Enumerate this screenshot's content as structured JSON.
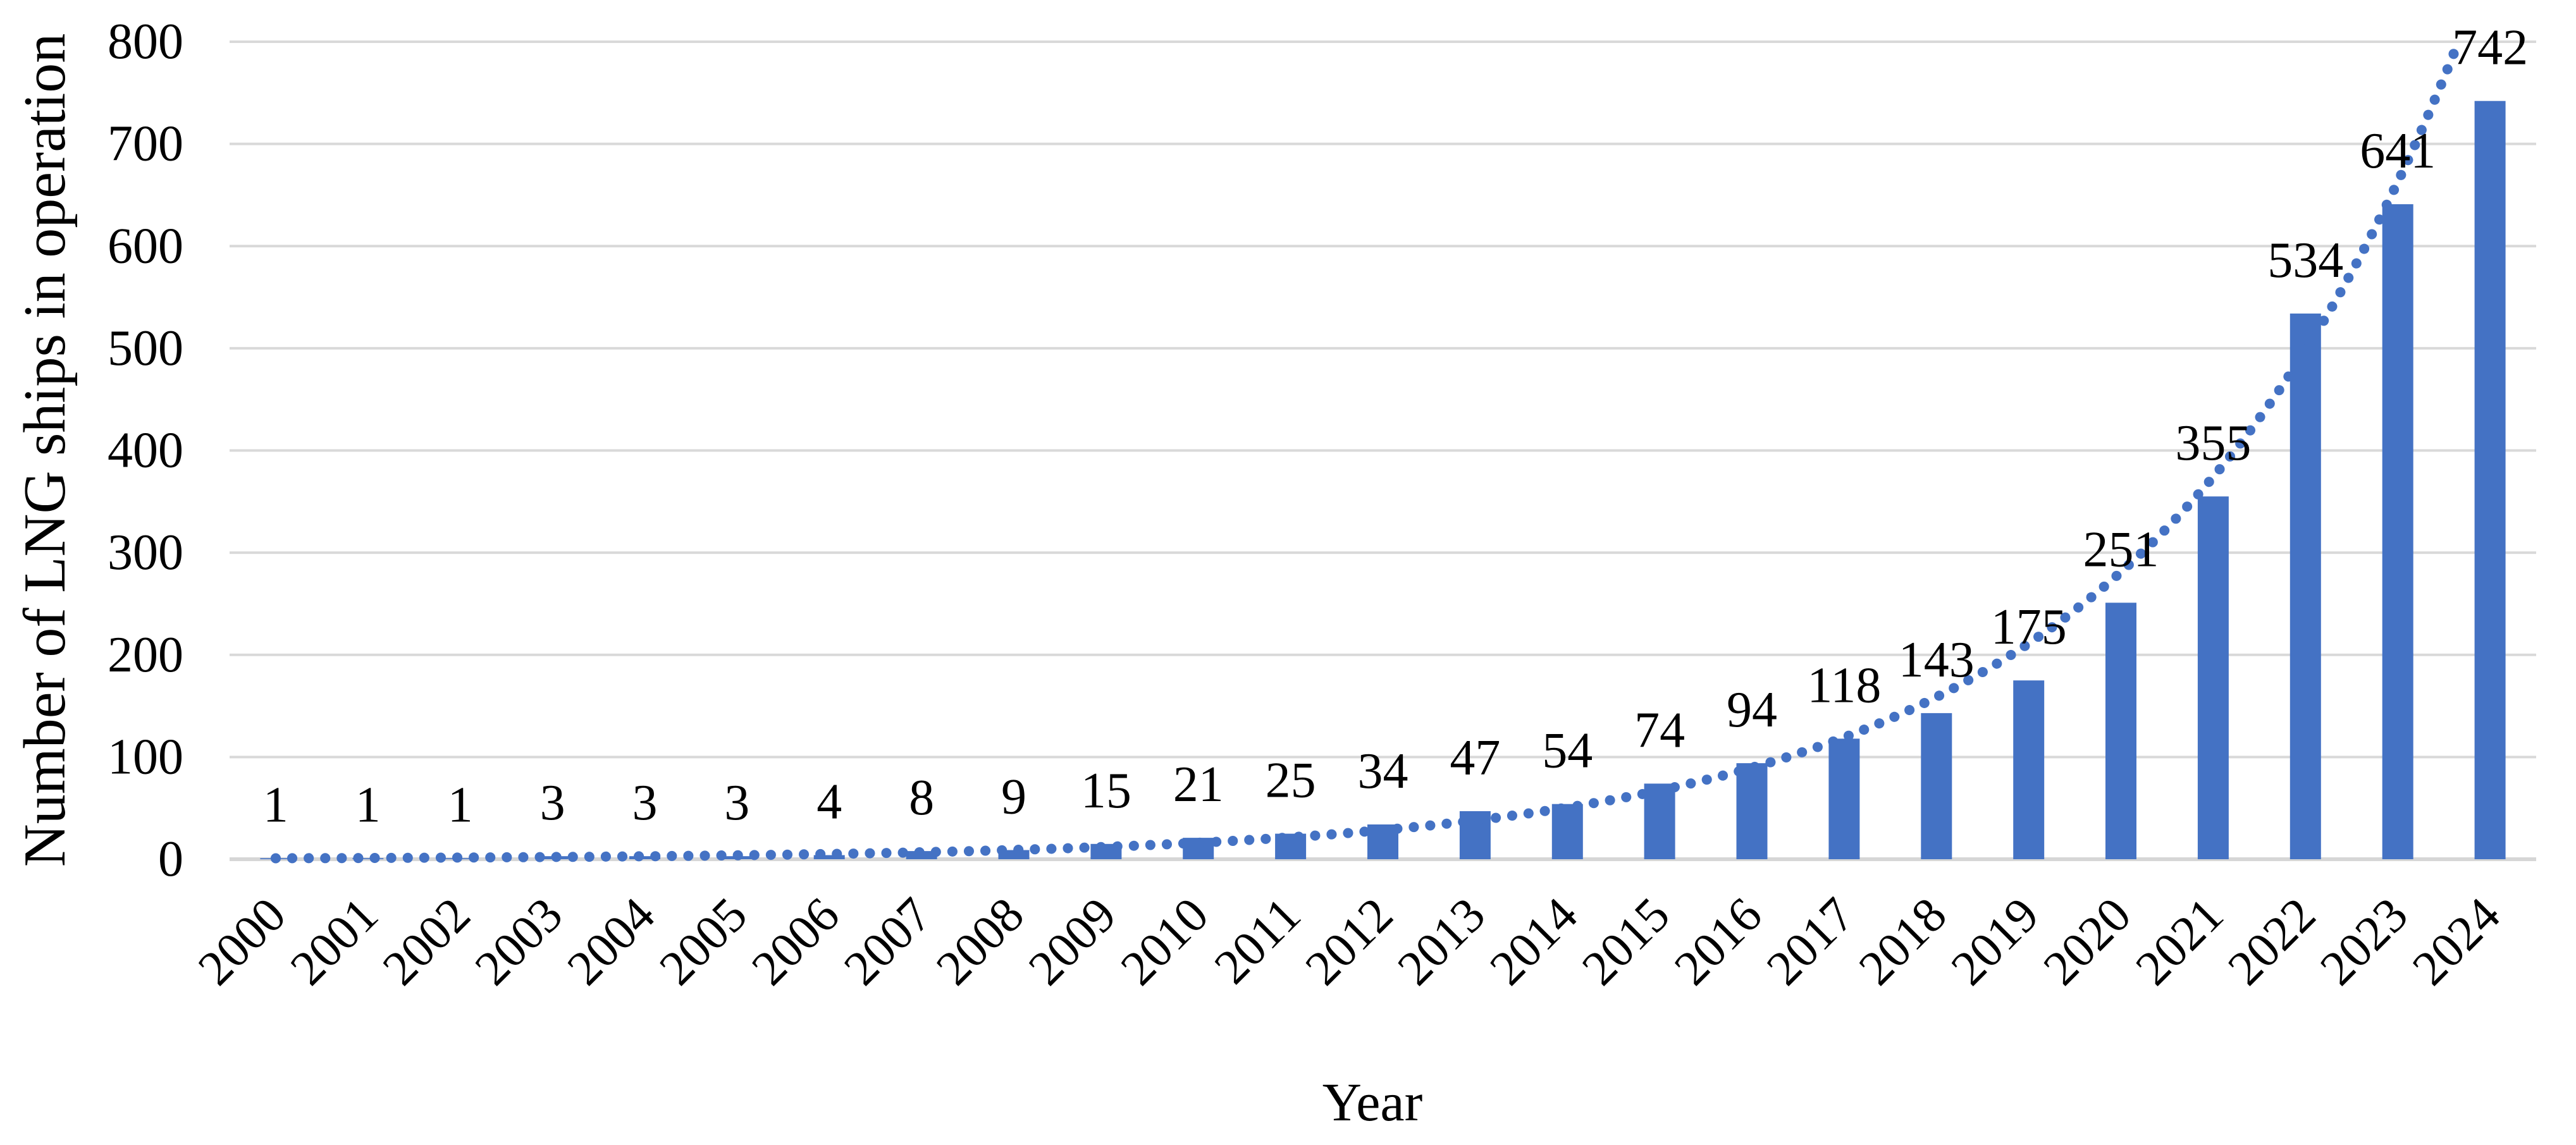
{
  "chart_data": {
    "type": "bar",
    "title": "",
    "xlabel": "Year",
    "ylabel": "Number of LNG ships in operation",
    "categories": [
      "2000",
      "2001",
      "2002",
      "2003",
      "2004",
      "2005",
      "2006",
      "2007",
      "2008",
      "2009",
      "2010",
      "2011",
      "2012",
      "2013",
      "2014",
      "2015",
      "2016",
      "2017",
      "2018",
      "2019",
      "2020",
      "2021",
      "2022",
      "2023",
      "2024"
    ],
    "values": [
      1,
      1,
      1,
      3,
      3,
      3,
      4,
      8,
      9,
      15,
      21,
      25,
      34,
      47,
      54,
      74,
      94,
      118,
      143,
      175,
      251,
      355,
      534,
      641,
      742
    ],
    "yticks": [
      "0",
      "100",
      "200",
      "300",
      "400",
      "500",
      "600",
      "700",
      "800"
    ],
    "ylim": [
      0,
      800
    ],
    "grid": true,
    "legend_position": "none",
    "data_labels_visible": true,
    "x_tick_rotation_deg": -45,
    "trendline": {
      "type": "exponential",
      "style": "dotted"
    },
    "colors": {
      "bar": "#4472C4",
      "trendline": "#4472C4",
      "gridline": "#D9D9D9",
      "axis_line": "#D6D6D6",
      "text": "#000000"
    }
  }
}
